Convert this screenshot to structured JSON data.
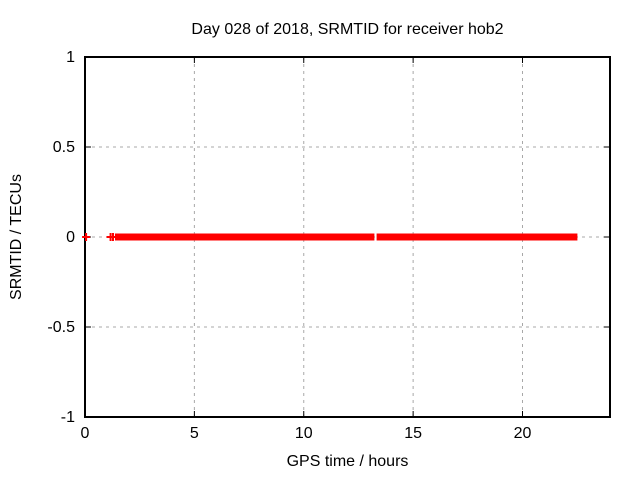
{
  "window": {
    "background_color": "#ffffff",
    "text_color": "#000000"
  },
  "chart_data": {
    "type": "scatter",
    "title": "Day 028 of 2018, SRMTID for receiver hob2",
    "xlabel": "GPS time / hours",
    "ylabel": "SRMTID / TECUs",
    "xlim": [
      0,
      24
    ],
    "ylim": [
      -1,
      1
    ],
    "xticks": [
      0,
      5,
      10,
      15,
      20
    ],
    "yticks": [
      -1,
      -0.5,
      0,
      0.5,
      1
    ],
    "grid": true,
    "grid_style": "dashed",
    "grid_color": "#a8a8a8",
    "border_color": "#000000",
    "legend": "none",
    "marker": "plus",
    "marker_color": "#ff0000",
    "series": [
      {
        "name": "SRMTID",
        "y_value": 0,
        "isolated_points_x": [
          0.05,
          1.17,
          1.28
        ],
        "dense_runs_x": [
          [
            1.37,
            13.23
          ],
          [
            13.33,
            22.51
          ]
        ]
      }
    ]
  }
}
